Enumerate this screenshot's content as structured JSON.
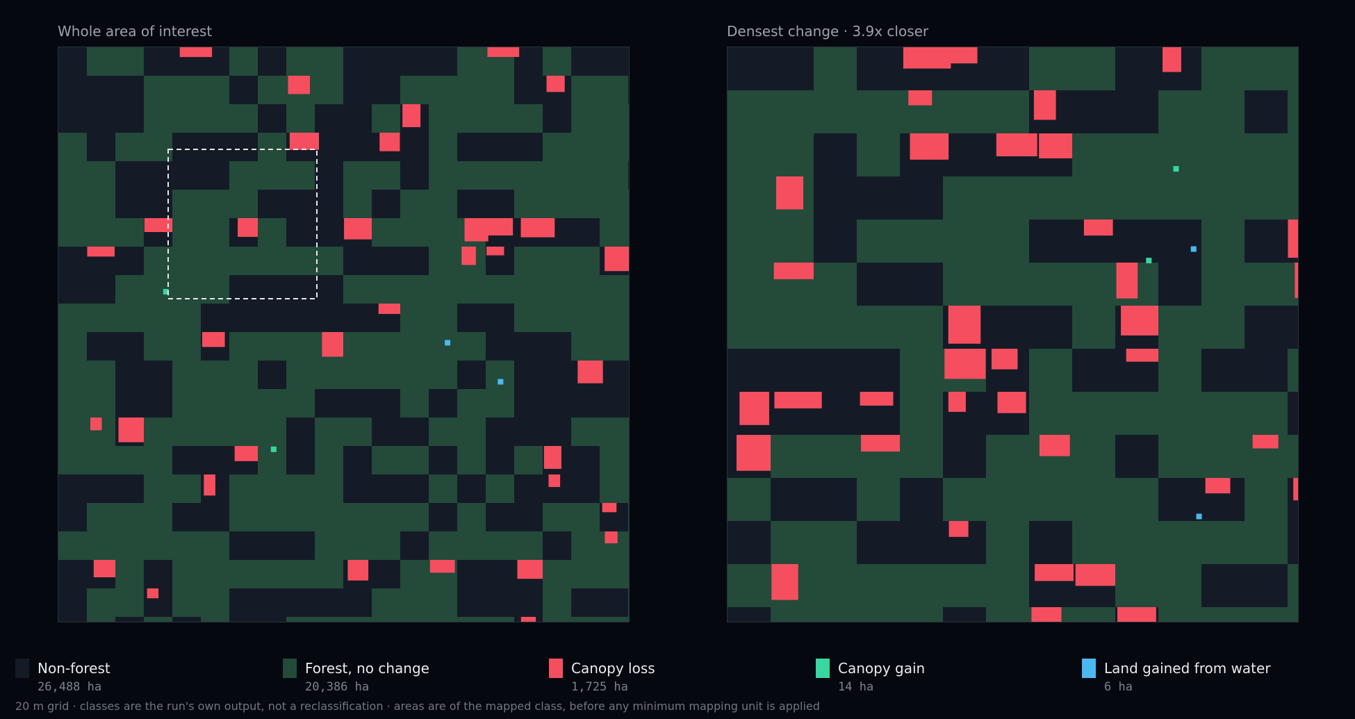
{
  "panels": [
    {
      "title": "Whole area of interest"
    },
    {
      "title": "Densest change · 3.9x closer"
    }
  ],
  "legend": [
    {
      "name": "Non-forest",
      "area": "26,488 ha",
      "color": "#141b26"
    },
    {
      "name": "Forest, no change",
      "area": "20,386 ha",
      "color": "#244a3a"
    },
    {
      "name": "Canopy loss",
      "area": "1,725 ha",
      "color": "#f54f5f"
    },
    {
      "name": "Canopy gain",
      "area": "14 ha",
      "color": "#38d6a0"
    },
    {
      "name": "Land gained from water",
      "area": "6 ha",
      "color": "#4cb8f0"
    }
  ],
  "footnote": "20 m grid · classes are the run's own output, not a reclassification · areas are of the mapped class, before any minimum mapping unit is applied"
}
